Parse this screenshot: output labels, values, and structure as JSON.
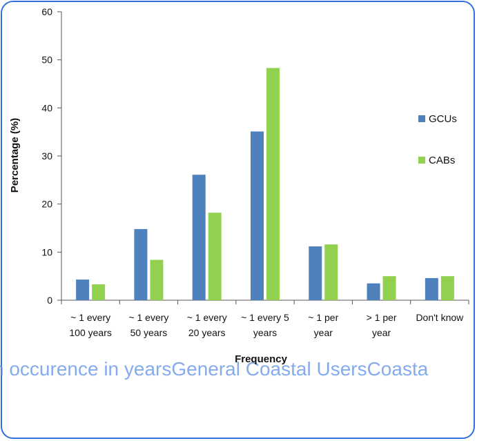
{
  "colors": {
    "frame": "#2f6fe0",
    "gcus": "#4f81bd",
    "cabs": "#92d050",
    "overlay": "#5b8fe8"
  },
  "overlay_text": "n occurence in yearsGeneral Coastal UsersCoasta",
  "chart_data": {
    "type": "bar",
    "title": "",
    "xlabel": "Frequency",
    "ylabel": "Percentage (%)",
    "ylim": [
      0,
      60
    ],
    "yticks": [
      0,
      10,
      20,
      30,
      40,
      50,
      60
    ],
    "grid": false,
    "legend_position": "right",
    "categories": [
      [
        "~ 1 every",
        "100 years"
      ],
      [
        "~ 1 every",
        "50 years"
      ],
      [
        "~ 1 every",
        "20 years"
      ],
      [
        "~ 1 every 5",
        "years"
      ],
      [
        "~ 1 per",
        "year"
      ],
      [
        "> 1 per",
        "year"
      ],
      [
        "Don't know"
      ]
    ],
    "series": [
      {
        "name": "GCUs",
        "color": "#4f81bd",
        "values": [
          4.3,
          14.8,
          26.1,
          35.1,
          11.2,
          3.5,
          4.6
        ]
      },
      {
        "name": "CABs",
        "color": "#92d050",
        "values": [
          3.3,
          8.4,
          18.2,
          48.3,
          11.6,
          5.0,
          5.0
        ]
      }
    ]
  }
}
